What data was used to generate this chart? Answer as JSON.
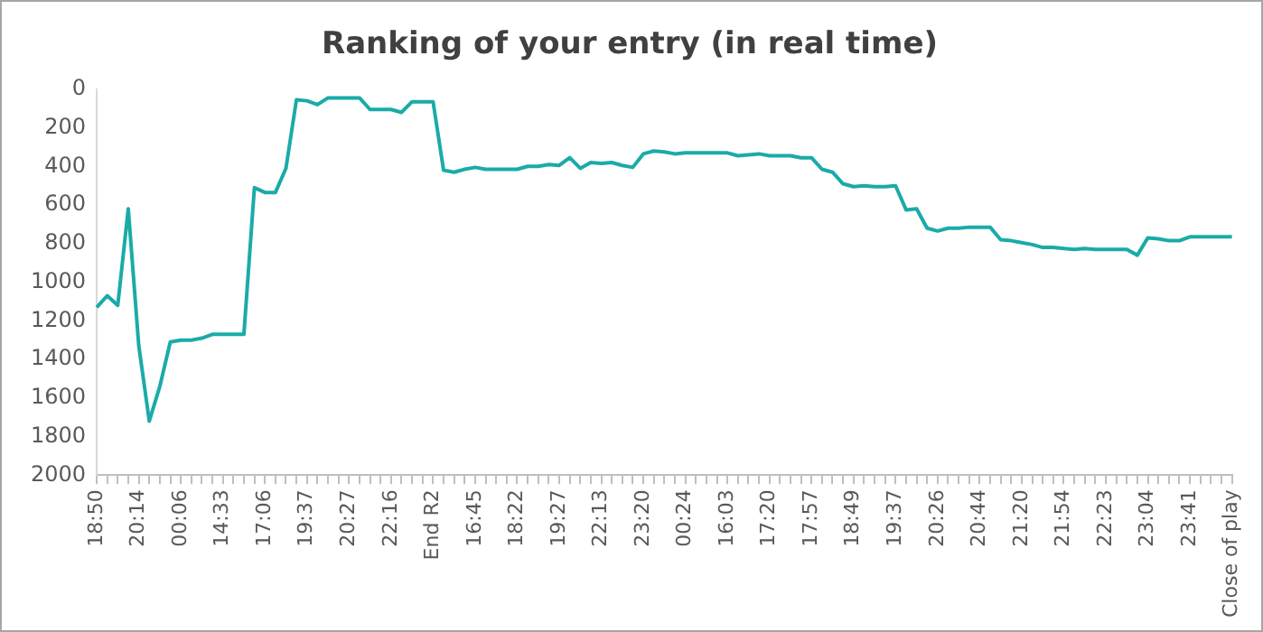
{
  "chart_data": {
    "type": "line",
    "title": "Ranking of your entry (in real time)",
    "categories": [
      "18:50",
      null,
      null,
      null,
      "20:14",
      null,
      null,
      null,
      "00:06",
      null,
      null,
      null,
      "14:33",
      null,
      null,
      null,
      "17:06",
      null,
      null,
      null,
      "19:37",
      null,
      null,
      null,
      "20:27",
      null,
      null,
      null,
      "22:16",
      null,
      null,
      null,
      "End R2",
      null,
      null,
      null,
      "16:45",
      null,
      null,
      null,
      "18:22",
      null,
      null,
      null,
      "19:27",
      null,
      null,
      null,
      "22:13",
      null,
      null,
      null,
      "23:20",
      null,
      null,
      null,
      "00:24",
      null,
      null,
      null,
      "16:03",
      null,
      null,
      null,
      "17:20",
      null,
      null,
      null,
      "17:57",
      null,
      null,
      null,
      "18:49",
      null,
      null,
      null,
      "19:37",
      null,
      null,
      null,
      "20:26",
      null,
      null,
      null,
      "20:44",
      null,
      null,
      null,
      "21:20",
      null,
      null,
      null,
      "21:54",
      null,
      null,
      null,
      "22:23",
      null,
      null,
      null,
      "23:04",
      null,
      null,
      null,
      "23:41",
      null,
      null,
      null,
      "Close of play"
    ],
    "series": [
      {
        "color": "#1aaba8",
        "values": [
          1130,
          1070,
          1120,
          620,
          1330,
          1720,
          1540,
          1310,
          1300,
          1300,
          1290,
          1270,
          1270,
          1270,
          1270,
          510,
          535,
          535,
          410,
          55,
          60,
          80,
          45,
          45,
          45,
          45,
          105,
          105,
          105,
          120,
          65,
          65,
          65,
          420,
          430,
          415,
          405,
          415,
          415,
          415,
          415,
          400,
          400,
          390,
          395,
          355,
          410,
          380,
          385,
          380,
          395,
          405,
          335,
          320,
          325,
          335,
          330,
          330,
          330,
          330,
          330,
          345,
          340,
          335,
          345,
          345,
          345,
          355,
          355,
          415,
          430,
          490,
          505,
          500,
          505,
          505,
          500,
          625,
          620,
          720,
          735,
          720,
          720,
          715,
          715,
          715,
          780,
          785,
          795,
          805,
          820,
          820,
          825,
          830,
          825,
          830,
          830,
          830,
          830,
          860,
          770,
          775,
          785,
          785,
          765,
          765,
          765,
          765,
          765
        ]
      }
    ],
    "ylim": [
      2000,
      0
    ],
    "yticks": [
      0,
      200,
      400,
      600,
      800,
      1000,
      1200,
      1400,
      1600,
      1800,
      2000
    ],
    "grid": false,
    "legend": false,
    "marker": "none",
    "line_style": "solid"
  }
}
